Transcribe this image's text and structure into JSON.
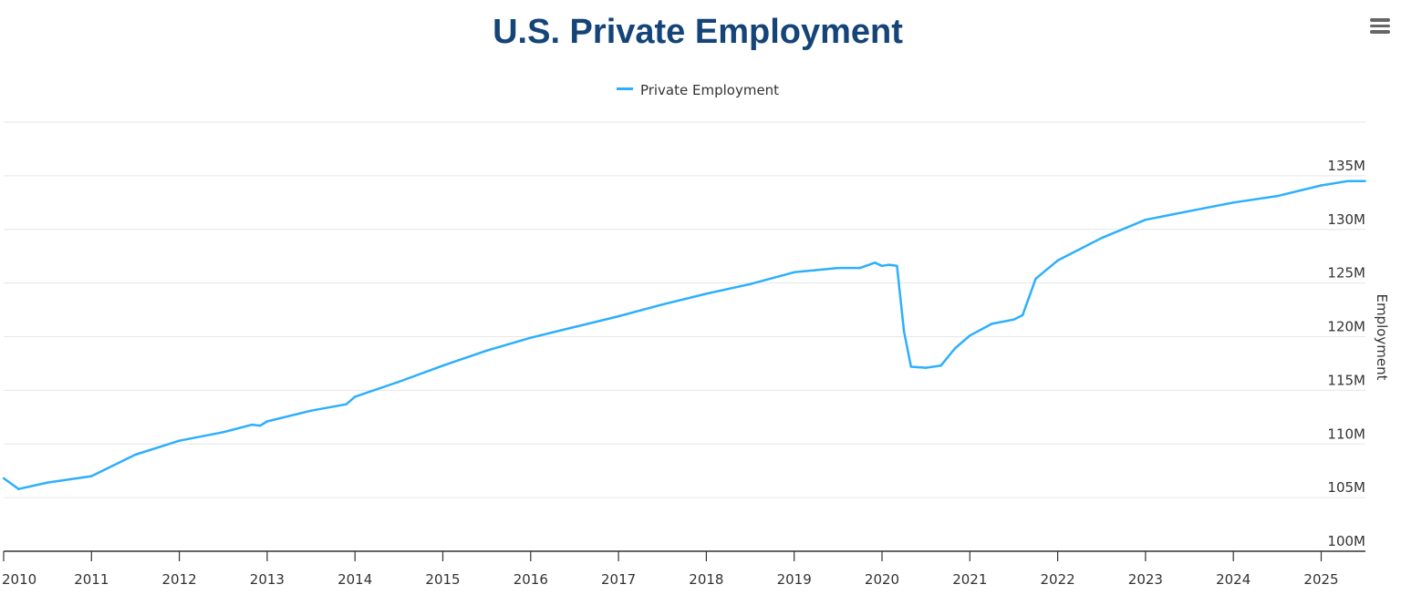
{
  "chart_data": {
    "type": "line",
    "title": "U.S. Private Employment",
    "ylabel": "Employment",
    "xlabel": "",
    "ylim": [
      100,
      140
    ],
    "y_ticks": [
      100,
      105,
      110,
      115,
      120,
      125,
      130,
      135,
      140
    ],
    "y_tick_labels": [
      "100M",
      "105M",
      "110M",
      "115M",
      "120M",
      "125M",
      "130M",
      "135M",
      ""
    ],
    "y_axis_position": "right",
    "xlim": [
      2010,
      2025.55
    ],
    "x_ticks": [
      2010,
      2011,
      2012,
      2013,
      2014,
      2015,
      2016,
      2017,
      2018,
      2019,
      2020,
      2021,
      2022,
      2023,
      2024,
      2025
    ],
    "x_tick_labels": [
      "2010",
      "2011",
      "2012",
      "2013",
      "2014",
      "2015",
      "2016",
      "2017",
      "2018",
      "2019",
      "2020",
      "2021",
      "2022",
      "2023",
      "2024",
      "2025"
    ],
    "grid": true,
    "legend_position": "top-center",
    "series": [
      {
        "name": "Private Employment",
        "color": "#2caffe",
        "unit": "millions",
        "x": [
          2010.0,
          2010.17,
          2010.5,
          2011.0,
          2011.25,
          2011.5,
          2012.0,
          2012.5,
          2012.83,
          2012.92,
          2013.0,
          2013.5,
          2013.9,
          2014.0,
          2014.5,
          2015.0,
          2015.5,
          2016.0,
          2016.5,
          2017.0,
          2017.5,
          2018.0,
          2018.5,
          2019.0,
          2019.5,
          2019.75,
          2019.92,
          2020.0,
          2020.08,
          2020.17,
          2020.25,
          2020.33,
          2020.5,
          2020.67,
          2020.83,
          2021.0,
          2021.25,
          2021.5,
          2021.6,
          2021.75,
          2022.0,
          2022.5,
          2023.0,
          2023.5,
          2024.0,
          2024.5,
          2025.0,
          2025.3,
          2025.5
        ],
        "values": [
          106.8,
          105.8,
          106.4,
          107.0,
          108.0,
          109.0,
          110.3,
          111.1,
          111.8,
          111.7,
          112.1,
          113.1,
          113.7,
          114.4,
          115.8,
          117.3,
          118.7,
          119.9,
          120.9,
          121.9,
          123.0,
          124.0,
          124.9,
          126.0,
          126.4,
          126.4,
          126.9,
          126.6,
          126.7,
          126.6,
          120.5,
          117.2,
          117.1,
          117.3,
          118.9,
          120.1,
          121.2,
          121.6,
          122.0,
          125.4,
          127.1,
          129.2,
          130.9,
          131.7,
          132.5,
          133.1,
          134.1,
          134.5,
          134.5
        ]
      }
    ]
  },
  "menu_icon": "hamburger-menu-icon"
}
